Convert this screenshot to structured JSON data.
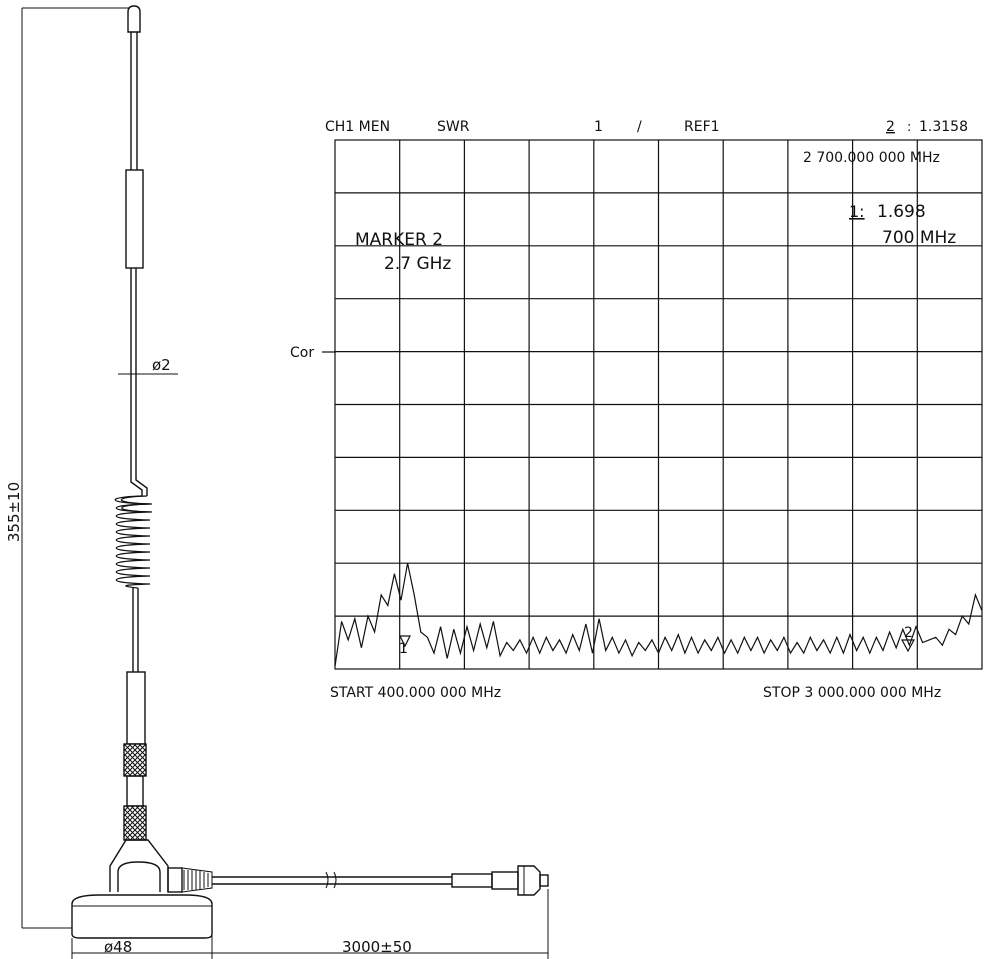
{
  "drawing": {
    "dim_height": "355±10",
    "dim_diameter_rod": "ø2",
    "dim_base": "ø48",
    "dim_cable": "3000±50"
  },
  "analyzer": {
    "header_channel": "CH1 MEN",
    "header_format": "SWR",
    "header_scale": "1",
    "header_slash": "/",
    "header_ref": "REF1",
    "header_marker_num": "2",
    "header_marker_sep": ":",
    "header_marker_value": "1.3158",
    "marker2_freq": "2 700.000 000 MHz",
    "marker1_label": "1:",
    "marker1_value": "1.698",
    "marker1_freq": "700  MHz",
    "annotation_line1": "MARKER 2",
    "annotation_line2": "2.7 GHz",
    "ref_label": "Cor",
    "start_label": "START 400.000 000 MHz",
    "stop_label": "STOP 3 000.000 000 MHz",
    "trace_marker1": "1",
    "trace_marker2": "2"
  },
  "chart_data": {
    "type": "line",
    "x_range_mhz": [
      400,
      3000
    ],
    "markers": [
      {
        "name": "1",
        "x_mhz": 700,
        "swr": 1.698
      },
      {
        "name": "2",
        "x_mhz": 2700,
        "swr": 1.3158
      }
    ],
    "grid": true,
    "series": [
      {
        "values_swr_relative": [
          0.05,
          0.9,
          0.55,
          0.95,
          0.4,
          1.0,
          0.7,
          1.4,
          1.2,
          1.8,
          1.3,
          2.0,
          1.4,
          0.7,
          0.6,
          0.3,
          0.8,
          0.2,
          0.75,
          0.3,
          0.8,
          0.35,
          0.85,
          0.4,
          0.9,
          0.25,
          0.5,
          0.35,
          0.55,
          0.3,
          0.6,
          0.3,
          0.6,
          0.35,
          0.55,
          0.3,
          0.65,
          0.35,
          0.85,
          0.3,
          0.95,
          0.35,
          0.6,
          0.3,
          0.55,
          0.25,
          0.5,
          0.35,
          0.55,
          0.3,
          0.6,
          0.35,
          0.65,
          0.3,
          0.6,
          0.3,
          0.55,
          0.35,
          0.6,
          0.3,
          0.55,
          0.3,
          0.6,
          0.35,
          0.6,
          0.3,
          0.55,
          0.35,
          0.6,
          0.3,
          0.5,
          0.3,
          0.6,
          0.35,
          0.55,
          0.3,
          0.6,
          0.3,
          0.65,
          0.35,
          0.6,
          0.3,
          0.6,
          0.35,
          0.7,
          0.4,
          0.75,
          0.45,
          0.8,
          0.5,
          0.55,
          0.6,
          0.45,
          0.75,
          0.65,
          1.0,
          0.85,
          1.4,
          1.1
        ]
      }
    ]
  }
}
